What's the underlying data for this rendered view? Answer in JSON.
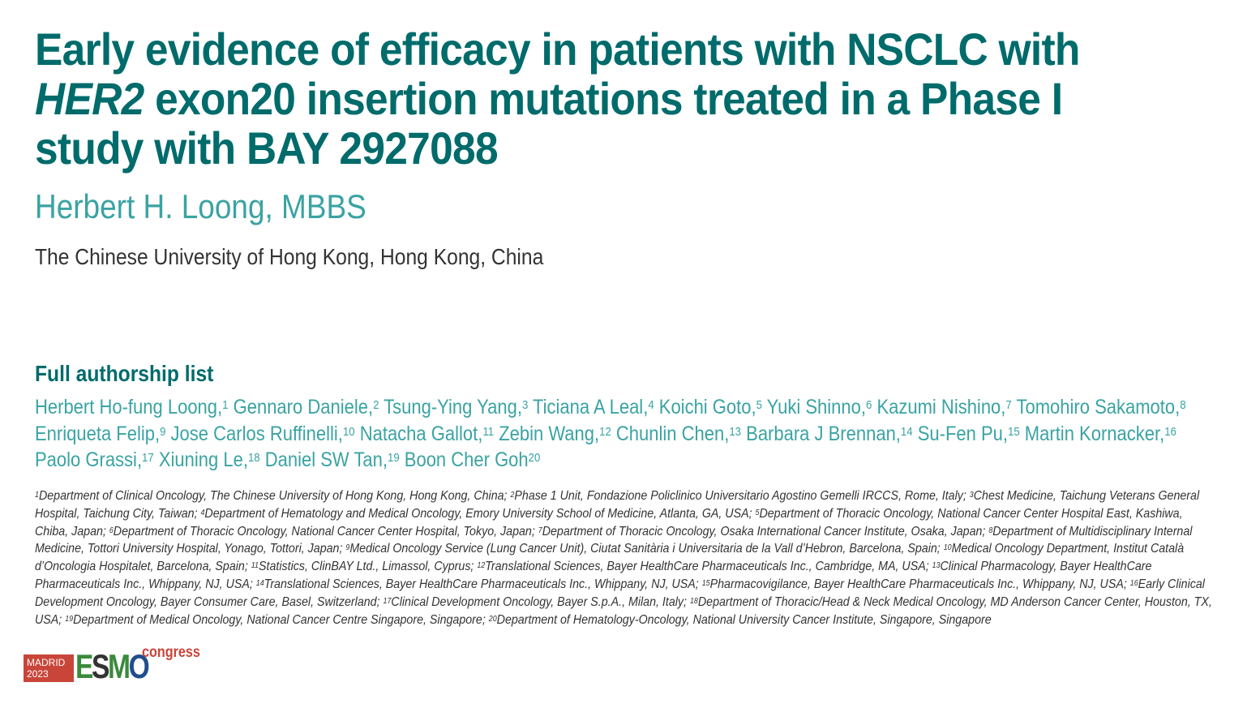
{
  "title": {
    "line1": "Early evidence of efficacy in patients with NSCLC with",
    "line2_italic": "HER2",
    "line2_rest": " exon20 insertion mutations treated in a Phase I",
    "line3": "study with BAY 2927088"
  },
  "presenter": "Herbert H. Loong, MBBS",
  "presenter_affiliation": "The Chinese University of Hong Kong, Hong Kong, China",
  "authorship_heading": "Full authorship list",
  "authors": [
    {
      "name": "Herbert Ho-fung Loong,",
      "sup": "1"
    },
    {
      "name": "Gennaro Daniele,",
      "sup": "2"
    },
    {
      "name": "Tsung-Ying Yang,",
      "sup": "3"
    },
    {
      "name": "Ticiana A Leal,",
      "sup": "4"
    },
    {
      "name": "Koichi Goto,",
      "sup": "5"
    },
    {
      "name": "Yuki Shinno,",
      "sup": "6"
    },
    {
      "name": "Kazumi Nishino,",
      "sup": "7"
    },
    {
      "name": "Tomohiro Sakamoto,",
      "sup": "8"
    },
    {
      "name": "Enriqueta Felip,",
      "sup": "9"
    },
    {
      "name": "Jose Carlos Ruffinelli,",
      "sup": "10"
    },
    {
      "name": "Natacha Gallot,",
      "sup": "11"
    },
    {
      "name": "Zebin Wang,",
      "sup": "12"
    },
    {
      "name": "Chunlin Chen,",
      "sup": "13"
    },
    {
      "name": "Barbara J Brennan,",
      "sup": "14"
    },
    {
      "name": "Su-Fen Pu,",
      "sup": "15"
    },
    {
      "name": "Martin Kornacker,",
      "sup": "16"
    },
    {
      "name": "Paolo Grassi,",
      "sup": "17"
    },
    {
      "name": "Xiuning Le,",
      "sup": "18"
    },
    {
      "name": "Daniel SW Tan,",
      "sup": "19"
    },
    {
      "name": "Boon Cher Goh",
      "sup": "20"
    }
  ],
  "affiliations": [
    {
      "sup": "1",
      "text": "Department of Clinical Oncology, The Chinese University of Hong Kong, Hong Kong, China; "
    },
    {
      "sup": "2",
      "text": "Phase 1 Unit, Fondazione Policlinico Universitario Agostino Gemelli IRCCS, Rome, Italy; "
    },
    {
      "sup": "3",
      "text": "Chest Medicine, Taichung Veterans General Hospital, Taichung City, Taiwan; "
    },
    {
      "sup": "4",
      "text": "Department of Hematology and Medical Oncology, Emory University School of Medicine, Atlanta, GA, USA; "
    },
    {
      "sup": "5",
      "text": "Department of Thoracic Oncology, National Cancer Center Hospital East, Kashiwa, Chiba, Japan; "
    },
    {
      "sup": "6",
      "text": "Department of Thoracic Oncology, National Cancer Center Hospital, Tokyo, Japan; "
    },
    {
      "sup": "7",
      "text": "Department of Thoracic Oncology, Osaka International Cancer Institute, Osaka, Japan; "
    },
    {
      "sup": "8",
      "text": "Department of Multidisciplinary Internal Medicine, Tottori University Hospital, Yonago, Tottori, Japan; "
    },
    {
      "sup": "9",
      "text": "Medical Oncology Service (Lung Cancer Unit), Ciutat Sanitària i Universitaria de la Vall d’Hebron, Barcelona, Spain; "
    },
    {
      "sup": "10",
      "text": "Medical Oncology Department, Institut Català d’Oncologia Hospitalet, Barcelona, Spain; "
    },
    {
      "sup": "11",
      "text": "Statistics, ClinBAY Ltd., Limassol, Cyprus; "
    },
    {
      "sup": "12",
      "text": "Translational Sciences, Bayer HealthCare Pharmaceuticals Inc., Cambridge, MA, USA; "
    },
    {
      "sup": "13",
      "text": "Clinical Pharmacology, Bayer HealthCare Pharmaceuticals Inc., Whippany, NJ, USA; "
    },
    {
      "sup": "14",
      "text": "Translational Sciences, Bayer HealthCare Pharmaceuticals Inc., Whippany, NJ, USA; "
    },
    {
      "sup": "15",
      "text": "Pharmacovigilance, Bayer HealthCare Pharmaceuticals Inc., Whippany, NJ, USA; "
    },
    {
      "sup": "16",
      "text": "Early Clinical Development Oncology, Bayer Consumer Care, Basel, Switzerland; "
    },
    {
      "sup": "17",
      "text": "Clinical Development Oncology, Bayer S.p.A., Milan, Italy; "
    },
    {
      "sup": "18",
      "text": "Department of Thoracic/Head & Neck Medical Oncology, MD Anderson Cancer Center, Houston, TX, USA; "
    },
    {
      "sup": "19",
      "text": "Department of Medical Oncology, National Cancer Centre Singapore, Singapore; "
    },
    {
      "sup": "20",
      "text": "Department of Hematology-Oncology, National University Cancer Institute, Singapore, Singapore"
    }
  ],
  "logo": {
    "city": "MADRID",
    "year": "2023",
    "e": "E",
    "s": "S",
    "m": "M",
    "o": "O",
    "congress": "congress"
  },
  "colors": {
    "title": "#006b6b",
    "presenter": "#3aa3a3",
    "body_text": "#333333",
    "logo_red": "#c9453a",
    "logo_green": "#3a8a3c",
    "logo_dark": "#333333",
    "logo_blue": "#1f4e8c"
  }
}
